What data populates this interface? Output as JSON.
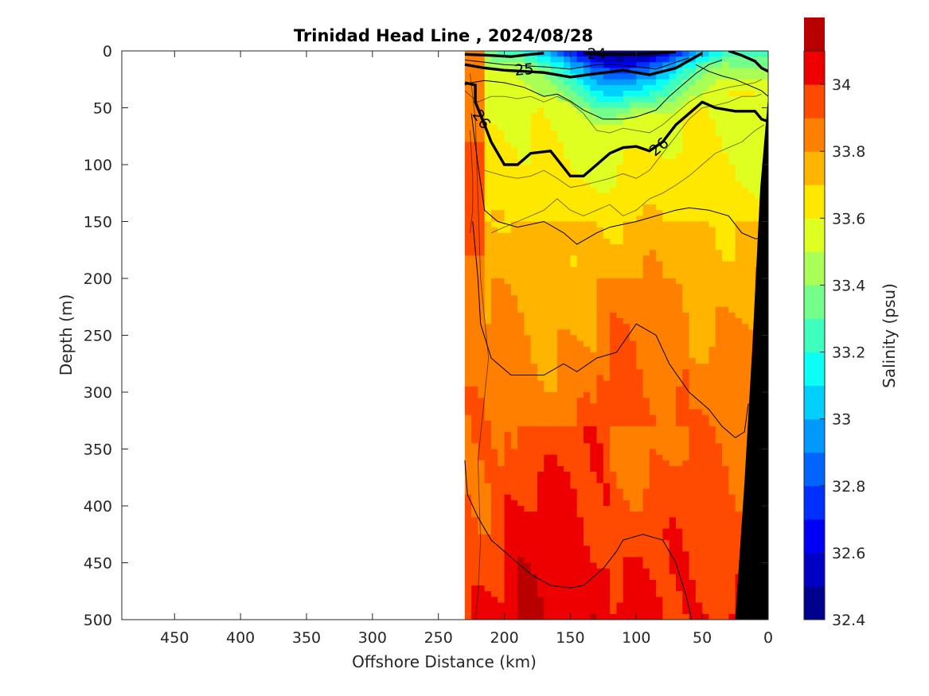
{
  "chart_data": {
    "type": "heatmap",
    "title": "Trinidad Head Line , 2024/08/28",
    "xlabel": "Offshore Distance (km)",
    "ylabel": "Depth (m)",
    "xlim": [
      490,
      0
    ],
    "ylim": [
      500,
      0
    ],
    "x_reversed": true,
    "y_reversed": true,
    "xticks": [
      450,
      400,
      350,
      300,
      250,
      200,
      150,
      100,
      50,
      0
    ],
    "yticks": [
      0,
      50,
      100,
      150,
      200,
      250,
      300,
      350,
      400,
      450,
      500
    ],
    "colorbar": {
      "label": "Salinity (psu)",
      "range": [
        32.4,
        34.1
      ],
      "ticks": [
        32.4,
        32.6,
        32.8,
        33,
        33.2,
        33.4,
        33.6,
        33.8,
        34
      ],
      "levels": [
        32.4,
        32.5,
        32.6,
        32.7,
        32.8,
        32.9,
        33.0,
        33.1,
        33.2,
        33.3,
        33.4,
        33.5,
        33.6,
        33.7,
        33.8,
        33.9,
        34.0,
        34.1
      ],
      "colors": [
        "#00008f",
        "#0000c4",
        "#0000f8",
        "#0030ff",
        "#0065ff",
        "#009aff",
        "#00cfff",
        "#0bfff4",
        "#3fffbf",
        "#74ff8b",
        "#a9ff56",
        "#deff21",
        "#ffe800",
        "#ffb400",
        "#ff7f00",
        "#ff4b00",
        "#ee0000",
        "#b80000"
      ]
    },
    "data_extent_km": [
      230,
      0
    ],
    "salinity_contours": [
      {
        "level": 33.5,
        "points": [
          [
            230,
            35
          ],
          [
            220,
            45
          ],
          [
            210,
            40
          ],
          [
            200,
            40
          ],
          [
            190,
            42
          ],
          [
            180,
            40
          ],
          [
            170,
            45
          ],
          [
            160,
            40
          ],
          [
            150,
            45
          ],
          [
            140,
            55
          ],
          [
            130,
            70
          ],
          [
            120,
            72
          ],
          [
            110,
            68
          ],
          [
            100,
            70
          ],
          [
            90,
            72
          ],
          [
            80,
            65
          ],
          [
            70,
            55
          ],
          [
            60,
            45
          ],
          [
            50,
            38
          ],
          [
            40,
            35
          ],
          [
            30,
            32
          ],
          [
            20,
            30
          ],
          [
            10,
            28
          ],
          [
            5,
            25
          ]
        ]
      },
      {
        "level": 33.6,
        "points": [
          [
            215,
            105
          ],
          [
            200,
            110
          ],
          [
            190,
            112
          ],
          [
            180,
            110
          ],
          [
            170,
            105
          ],
          [
            160,
            112
          ],
          [
            150,
            120
          ],
          [
            140,
            118
          ],
          [
            130,
            115
          ],
          [
            120,
            112
          ],
          [
            110,
            108
          ],
          [
            100,
            112
          ],
          [
            90,
            105
          ],
          [
            80,
            90
          ],
          [
            70,
            75
          ],
          [
            60,
            60
          ],
          [
            50,
            50
          ],
          [
            40,
            48
          ],
          [
            30,
            45
          ],
          [
            20,
            40
          ],
          [
            10,
            40
          ],
          [
            5,
            38
          ]
        ]
      },
      {
        "level": 33.7,
        "points": [
          [
            210,
            160
          ],
          [
            200,
            155
          ],
          [
            190,
            150
          ],
          [
            180,
            145
          ],
          [
            170,
            140
          ],
          [
            160,
            130
          ],
          [
            150,
            140
          ],
          [
            140,
            145
          ],
          [
            130,
            140
          ],
          [
            120,
            135
          ],
          [
            110,
            145
          ],
          [
            100,
            140
          ],
          [
            90,
            130
          ],
          [
            80,
            125
          ],
          [
            70,
            118
          ],
          [
            60,
            110
          ],
          [
            50,
            100
          ],
          [
            40,
            90
          ],
          [
            30,
            85
          ],
          [
            20,
            80
          ],
          [
            10,
            70
          ],
          [
            3,
            65
          ]
        ]
      },
      {
        "level": 33.8,
        "points": [
          [
            226,
            20
          ],
          [
            222,
            60
          ],
          [
            220,
            130
          ],
          [
            218,
            200
          ],
          [
            212,
            270
          ],
          [
            220,
            360
          ],
          [
            218,
            430
          ],
          [
            220,
            480
          ],
          [
            222,
            500
          ]
        ]
      },
      {
        "level": 33.9,
        "points": [
          [
            226,
            70
          ],
          [
            224,
            110
          ],
          [
            224,
            140
          ],
          [
            226,
            160
          ]
        ]
      }
    ],
    "density_contours": [
      {
        "label": "24",
        "bold": true,
        "points": [
          [
            230,
            3
          ],
          [
            210,
            4
          ],
          [
            195,
            5
          ],
          [
            180,
            3
          ],
          [
            170,
            2
          ]
        ]
      },
      {
        "label": "24b",
        "bold": true,
        "points": [
          [
            140,
            2
          ],
          [
            120,
            3
          ],
          [
            100,
            3
          ],
          [
            85,
            2
          ],
          [
            70,
            1
          ]
        ]
      },
      {
        "label": "25",
        "bold": true,
        "points": [
          [
            230,
            12
          ],
          [
            215,
            15
          ],
          [
            200,
            17
          ],
          [
            185,
            18
          ],
          [
            170,
            19
          ],
          [
            150,
            23
          ],
          [
            130,
            20
          ],
          [
            110,
            17
          ],
          [
            90,
            21
          ],
          [
            70,
            15
          ],
          [
            50,
            2
          ]
        ]
      },
      {
        "label": "25c",
        "bold": true,
        "points": [
          [
            30,
            0
          ],
          [
            20,
            4
          ],
          [
            10,
            9
          ],
          [
            5,
            15
          ],
          [
            0,
            18
          ]
        ]
      },
      {
        "label": "26",
        "bold": true,
        "points": [
          [
            230,
            28
          ],
          [
            222,
            30
          ],
          [
            222,
            45
          ],
          [
            215,
            65
          ],
          [
            210,
            80
          ],
          [
            200,
            100
          ],
          [
            190,
            100
          ],
          [
            180,
            90
          ],
          [
            165,
            88
          ],
          [
            150,
            110
          ],
          [
            140,
            110
          ],
          [
            130,
            100
          ],
          [
            120,
            90
          ],
          [
            110,
            85
          ],
          [
            100,
            84
          ],
          [
            90,
            88
          ],
          [
            80,
            80
          ],
          [
            70,
            65
          ],
          [
            60,
            55
          ],
          [
            50,
            45
          ],
          [
            40,
            50
          ],
          [
            25,
            53
          ],
          [
            10,
            53
          ],
          [
            5,
            60
          ],
          [
            0,
            62
          ]
        ]
      },
      {
        "label": "thin1",
        "bold": false,
        "points": [
          [
            225,
            55
          ],
          [
            220,
            100
          ],
          [
            215,
            140
          ],
          [
            205,
            150
          ],
          [
            190,
            155
          ],
          [
            170,
            150
          ],
          [
            155,
            160
          ],
          [
            145,
            170
          ],
          [
            130,
            160
          ],
          [
            120,
            155
          ],
          [
            100,
            150
          ],
          [
            85,
            145
          ],
          [
            70,
            140
          ],
          [
            60,
            138
          ],
          [
            45,
            140
          ],
          [
            30,
            145
          ],
          [
            20,
            160
          ],
          [
            10,
            165
          ],
          [
            2,
            165
          ]
        ]
      },
      {
        "label": "thin2",
        "bold": false,
        "points": [
          [
            224,
            150
          ],
          [
            220,
            200
          ],
          [
            218,
            240
          ],
          [
            210,
            270
          ],
          [
            195,
            285
          ],
          [
            170,
            285
          ],
          [
            155,
            275
          ],
          [
            145,
            282
          ],
          [
            130,
            270
          ],
          [
            115,
            265
          ],
          [
            100,
            240
          ],
          [
            85,
            250
          ],
          [
            75,
            275
          ],
          [
            60,
            300
          ],
          [
            45,
            315
          ],
          [
            35,
            330
          ],
          [
            25,
            340
          ],
          [
            18,
            335
          ],
          [
            15,
            310
          ]
        ]
      },
      {
        "label": "thin3",
        "bold": false,
        "points": [
          [
            230,
            360
          ],
          [
            228,
            390
          ],
          [
            220,
            410
          ],
          [
            210,
            430
          ],
          [
            195,
            445
          ],
          [
            180,
            460
          ],
          [
            165,
            470
          ],
          [
            150,
            472
          ],
          [
            140,
            470
          ],
          [
            125,
            455
          ],
          [
            115,
            440
          ],
          [
            110,
            430
          ],
          [
            95,
            425
          ],
          [
            80,
            430
          ],
          [
            70,
            450
          ],
          [
            62,
            480
          ],
          [
            58,
            500
          ]
        ]
      },
      {
        "label": "thin4",
        "bold": false,
        "points": [
          [
            230,
            30
          ],
          [
            225,
            28
          ],
          [
            215,
            26
          ],
          [
            200,
            28
          ],
          [
            185,
            32
          ],
          [
            170,
            40
          ],
          [
            160,
            38
          ],
          [
            150,
            44
          ],
          [
            140,
            52
          ],
          [
            125,
            60
          ],
          [
            110,
            60
          ],
          [
            100,
            58
          ],
          [
            85,
            52
          ],
          [
            75,
            40
          ],
          [
            65,
            30
          ],
          [
            55,
            20
          ],
          [
            45,
            12
          ],
          [
            35,
            8
          ]
        ]
      },
      {
        "label": "thin5",
        "bold": false,
        "points": [
          [
            230,
            8
          ],
          [
            215,
            10
          ],
          [
            200,
            12
          ],
          [
            185,
            13
          ],
          [
            170,
            14
          ],
          [
            150,
            16
          ],
          [
            130,
            12
          ],
          [
            115,
            12
          ],
          [
            100,
            14
          ],
          [
            85,
            16
          ],
          [
            70,
            10
          ],
          [
            60,
            6
          ]
        ]
      },
      {
        "label": "thin6",
        "bold": false,
        "points": [
          [
            0,
            40
          ],
          [
            5,
            35
          ],
          [
            15,
            30
          ],
          [
            25,
            25
          ],
          [
            35,
            22
          ],
          [
            45,
            18
          ],
          [
            55,
            12
          ]
        ]
      }
    ],
    "contour_labels": [
      {
        "text": "24",
        "x": 130,
        "y": 2,
        "rotate": 0
      },
      {
        "text": "25",
        "x": 185,
        "y": 16,
        "rotate": -5
      },
      {
        "text": "26",
        "x": 217,
        "y": 60,
        "rotate": 55
      },
      {
        "text": "26",
        "x": 83,
        "y": 84,
        "rotate": -40
      }
    ]
  }
}
